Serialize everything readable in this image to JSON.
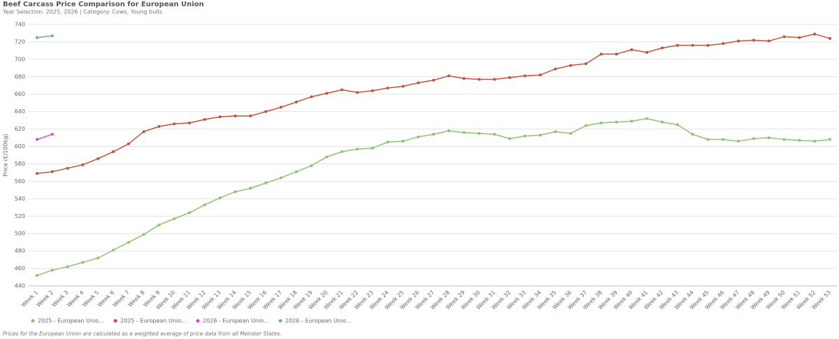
{
  "chart_data": {
    "type": "line",
    "title": "Beef Carcass Price Comparison for European Union",
    "subtitle": "Year Selection: 2025, 2026 | Category: Cows, Young bulls",
    "y_label": "Price (€/100kg)",
    "footnote": "Prices for the European Union are calculated as a weighted average of price data from all Member States.",
    "categories": [
      "Week 1",
      "Week 2",
      "Week 3",
      "Week 4",
      "Week 5",
      "Week 6",
      "Week 7",
      "Week 8",
      "Week 9",
      "Week 10",
      "Week 11",
      "Week 12",
      "Week 13",
      "Week 14",
      "Week 15",
      "Week 16",
      "Week 17",
      "Week 18",
      "Week 19",
      "Week 20",
      "Week 21",
      "Week 22",
      "Week 23",
      "Week 24",
      "Week 25",
      "Week 26",
      "Week 27",
      "Week 28",
      "Week 29",
      "Week 30",
      "Week 31",
      "Week 32",
      "Week 33",
      "Week 34",
      "Week 35",
      "Week 36",
      "Week 37",
      "Week 38",
      "Week 39",
      "Week 40",
      "Week 41",
      "Week 42",
      "Week 43",
      "Week 44",
      "Week 45",
      "Week 46",
      "Week 47",
      "Week 48",
      "Week 49",
      "Week 50",
      "Week 51",
      "Week 52",
      "Week 53"
    ],
    "series": [
      {
        "name": "2025 - European Unio...",
        "color": "#8dc26f",
        "values": [
          452,
          458,
          462,
          467,
          472,
          481,
          490,
          499,
          510,
          517,
          524,
          533,
          541,
          548,
          552,
          558,
          564,
          571,
          578,
          588,
          594,
          597,
          598,
          605,
          606,
          611,
          614,
          618,
          616,
          615,
          614,
          609,
          612,
          613,
          617,
          615,
          624,
          627,
          628,
          629,
          632,
          628,
          625,
          614,
          608,
          608,
          606,
          609,
          610,
          608,
          607,
          606,
          608
        ]
      },
      {
        "name": "2025 - European Unio...",
        "color": "#c4503c",
        "values": [
          569,
          571,
          575,
          579,
          586,
          594,
          603,
          617,
          623,
          626,
          627,
          631,
          634,
          635,
          635,
          640,
          645,
          651,
          657,
          661,
          665,
          662,
          664,
          667,
          669,
          673,
          676,
          681,
          678,
          677,
          677,
          679,
          681,
          682,
          689,
          693,
          695,
          706,
          706,
          711,
          708,
          713,
          716,
          716,
          716,
          718,
          721,
          722,
          721,
          726,
          725,
          729,
          724
        ]
      },
      {
        "name": "2026 - European Unio...",
        "color": "#c94fd1",
        "values": [
          608,
          614,
          null,
          null,
          null,
          null,
          null,
          null,
          null,
          null,
          null,
          null,
          null,
          null,
          null,
          null,
          null,
          null,
          null,
          null,
          null,
          null,
          null,
          null,
          null,
          null,
          null,
          null,
          null,
          null,
          null,
          null,
          null,
          null,
          null,
          null,
          null,
          null,
          null,
          null,
          null,
          null,
          null,
          null,
          null,
          null,
          null,
          null,
          null,
          null,
          null,
          null,
          null
        ]
      },
      {
        "name": "2026 - European Unio...",
        "color": "#6aa3d6",
        "values": [
          725,
          727,
          null,
          null,
          null,
          null,
          null,
          null,
          null,
          null,
          null,
          null,
          null,
          null,
          null,
          null,
          null,
          null,
          null,
          null,
          null,
          null,
          null,
          null,
          null,
          null,
          null,
          null,
          null,
          null,
          null,
          null,
          null,
          null,
          null,
          null,
          null,
          null,
          null,
          null,
          null,
          null,
          null,
          null,
          null,
          null,
          null,
          null,
          null,
          null,
          null,
          null,
          null
        ]
      }
    ],
    "ylim": [
      440,
      740
    ],
    "yticks": [
      440,
      460,
      480,
      500,
      520,
      540,
      560,
      580,
      600,
      620,
      640,
      660,
      680,
      700,
      720,
      740
    ],
    "grid": true
  }
}
